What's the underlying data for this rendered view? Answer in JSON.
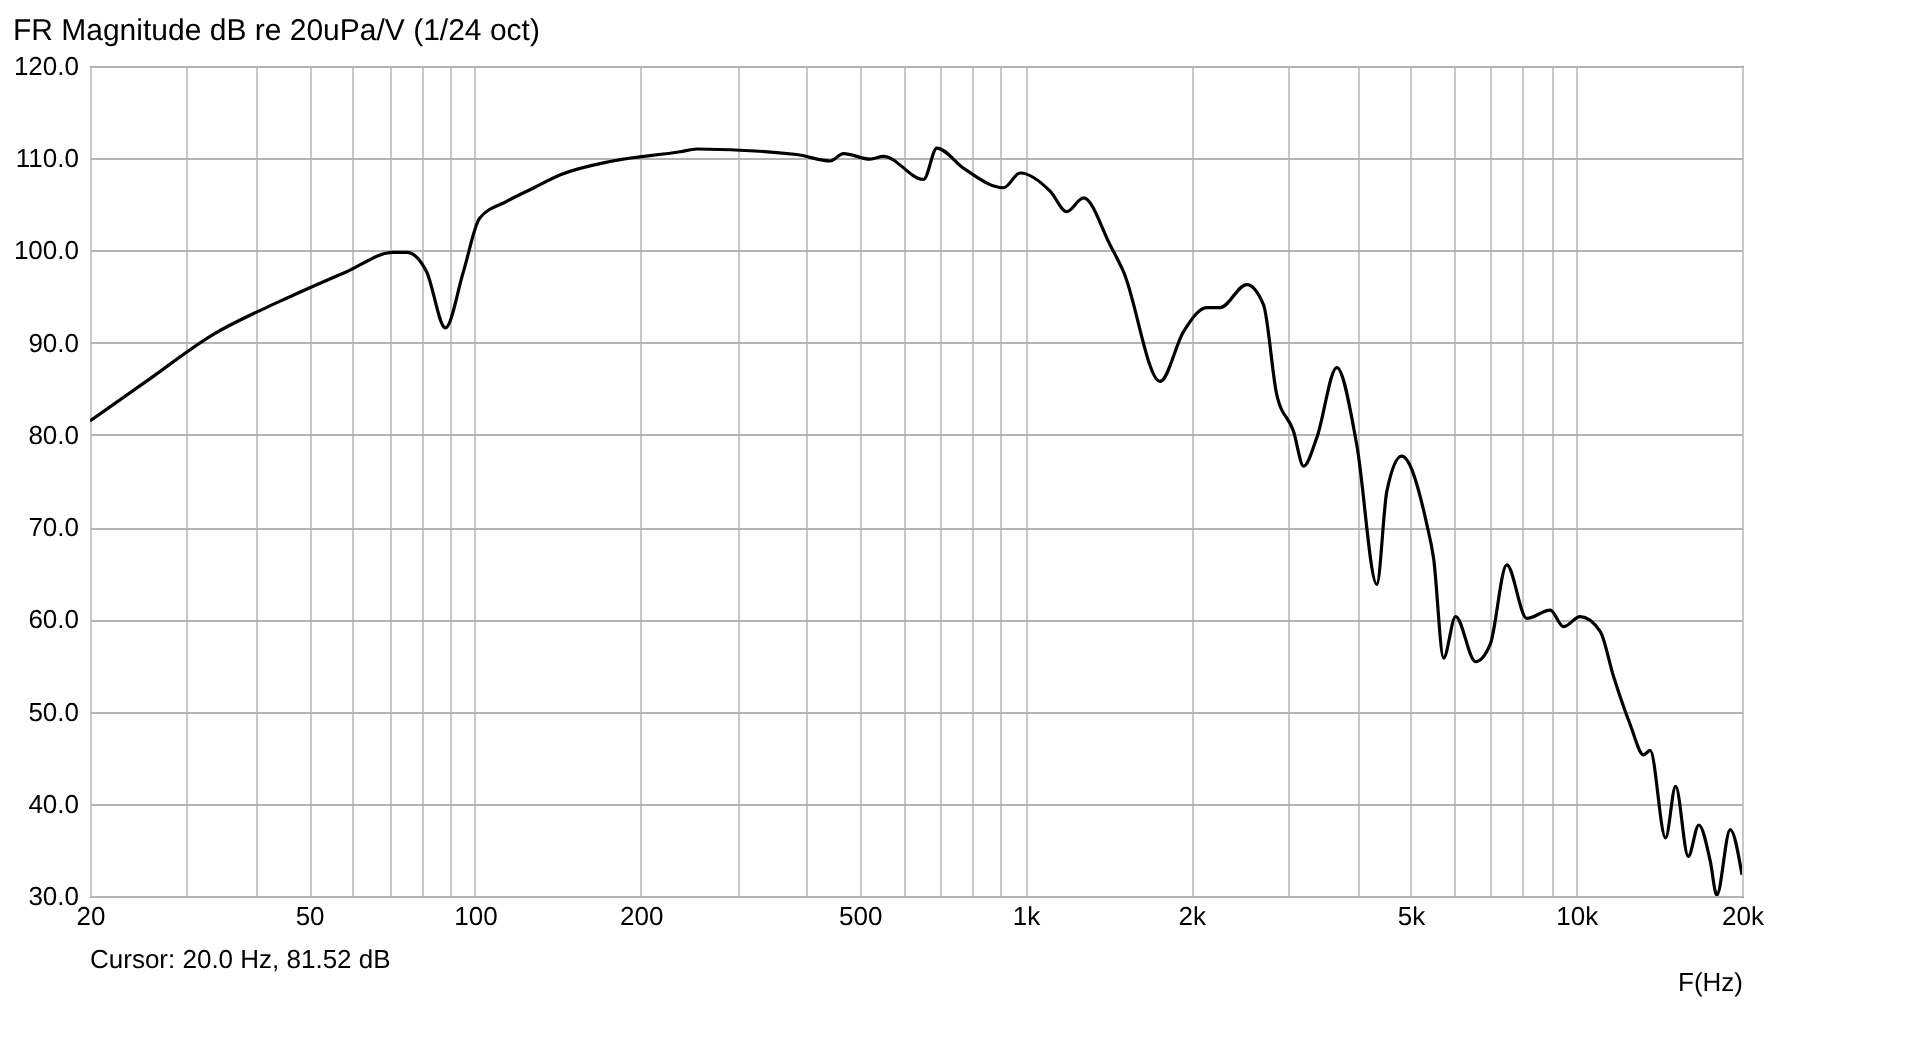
{
  "chart_data": {
    "type": "line",
    "title": "FR Magnitude dB re 20uPa/V (1/24 oct)",
    "xlabel": "F(Hz)",
    "annotations": [
      "Cursor: 20.0 Hz, 81.52 dB"
    ],
    "log": "x",
    "grid": true,
    "legend": false,
    "marker": "none",
    "line_style": "solid",
    "xlim": [
      20,
      20000
    ],
    "ylim": [
      30,
      120
    ],
    "xticks": [
      20,
      {
        "value": 30,
        "label": null
      },
      {
        "value": 40,
        "label": null
      },
      50,
      {
        "value": 60,
        "label": null
      },
      {
        "value": 70,
        "label": null
      },
      {
        "value": 80,
        "label": null
      },
      {
        "value": 90,
        "label": null
      },
      100,
      200,
      {
        "value": 300,
        "label": null
      },
      {
        "value": 400,
        "label": null
      },
      500,
      {
        "value": 600,
        "label": null
      },
      {
        "value": 700,
        "label": null
      },
      {
        "value": 800,
        "label": null
      },
      {
        "value": 900,
        "label": null
      },
      {
        "value": 1000,
        "label": "1k"
      },
      {
        "value": 2000,
        "label": "2k"
      },
      {
        "value": 3000,
        "label": null
      },
      {
        "value": 4000,
        "label": null
      },
      {
        "value": 5000,
        "label": "5k"
      },
      {
        "value": 6000,
        "label": null
      },
      {
        "value": 7000,
        "label": null
      },
      {
        "value": 8000,
        "label": null
      },
      {
        "value": 9000,
        "label": null
      },
      {
        "value": 10000,
        "label": "10k"
      },
      {
        "value": 20000,
        "label": "20k"
      }
    ],
    "yticks": [
      {
        "value": 30,
        "label": "30.0"
      },
      {
        "value": 40,
        "label": "40.0"
      },
      {
        "value": 50,
        "label": "50.0"
      },
      {
        "value": 60,
        "label": "60.0"
      },
      {
        "value": 70,
        "label": "70.0"
      },
      {
        "value": 80,
        "label": "80.0"
      },
      {
        "value": 90,
        "label": "90.0"
      },
      {
        "value": 100,
        "label": "100.0"
      },
      {
        "value": 110,
        "label": "110.0"
      },
      {
        "value": 120,
        "label": "120.0"
      }
    ],
    "series": [
      {
        "color": "#000000",
        "x": [
          20,
          25.3,
          33.5,
          44.3,
          58.5,
          71.1,
          75.2,
          81.7,
          88.4,
          95.3,
          102,
          114,
          128,
          143,
          178,
          236,
          253,
          384,
          442,
          467,
          522,
          552,
          653,
          690,
          772,
          912,
          978,
          1109,
          1188,
          1274,
          1424,
          1506,
          1755,
          1936,
          2133,
          2256,
          2521,
          2705,
          2858,
          3066,
          3198,
          3380,
          3674,
          3995,
          4344,
          4530,
          4818,
          5354,
          5508,
          5743,
          6038,
          6566,
          6980,
          7478,
          8133,
          8969,
          9485,
          10165,
          11052,
          11689,
          12530,
          13252,
          13622,
          14530,
          15153,
          15973,
          16695,
          17510,
          17999,
          19037,
          20000
        ],
        "values": [
          81.5,
          85.8,
          90.9,
          94.5,
          97.7,
          99.8,
          99.8,
          97.7,
          91.6,
          97.7,
          103.5,
          105.3,
          106.8,
          108.2,
          109.7,
          110.7,
          111.0,
          110.4,
          109.7,
          110.5,
          109.9,
          110.2,
          107.7,
          111.1,
          108.9,
          106.8,
          108.4,
          106.4,
          104.2,
          105.7,
          100.6,
          97.7,
          85.8,
          91.2,
          93.8,
          93.8,
          96.3,
          94.1,
          84.4,
          80.4,
          76.6,
          79.7,
          87.3,
          78.9,
          63.8,
          73.9,
          77.7,
          70.3,
          66.6,
          55.8,
          60.3,
          55.4,
          57.3,
          65.9,
          60.1,
          61.0,
          59.2,
          60.3,
          58.7,
          53.8,
          48.6,
          45.3,
          45.8,
          36.3,
          41.9,
          34.3,
          37.7,
          33.8,
          30.1,
          37.2,
          32.3
        ]
      }
    ]
  }
}
